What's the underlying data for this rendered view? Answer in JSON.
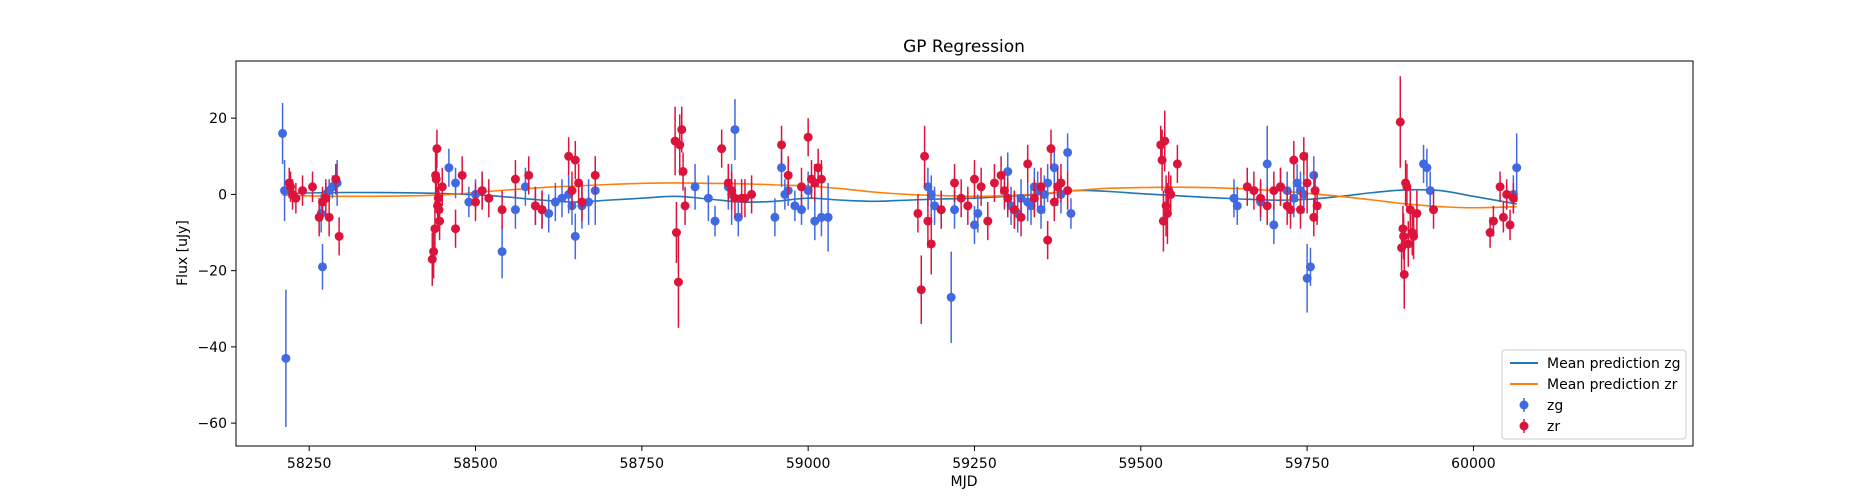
{
  "chart_data": {
    "type": "scatter",
    "title": "GP Regression",
    "xlabel": "MJD",
    "ylabel": "Flux [uJy]",
    "xlim": [
      58140,
      60330
    ],
    "ylim": [
      -66,
      35
    ],
    "xticks": [
      58250,
      58500,
      58750,
      59000,
      59250,
      59500,
      59750,
      60000
    ],
    "yticks": [
      -60,
      -40,
      -20,
      0,
      20
    ],
    "grid": false,
    "legend_position": "bottom-right",
    "colors": {
      "zg_points": "#4169e1",
      "zr_points": "#dc143c",
      "zg_line": "#1f77b4",
      "zr_line": "#ff7f0e"
    },
    "lines": [
      {
        "name": "Mean prediction zg",
        "x": [
          58210,
          58300,
          58440,
          58520,
          58600,
          58650,
          58700,
          58750,
          58800,
          58850,
          58900,
          58950,
          59000,
          59050,
          59100,
          59150,
          59200,
          59250,
          59300,
          59350,
          59400,
          59450,
          59500,
          59550,
          59600,
          59650,
          59700,
          59750,
          59800,
          59850,
          59900,
          59950,
          60000,
          60065
        ],
        "y": [
          0.2,
          0.5,
          0.3,
          -0.3,
          -1.5,
          -2.0,
          -1.5,
          -1.0,
          -0.5,
          -1.2,
          -2.0,
          -1.8,
          -1.0,
          -1.5,
          -1.8,
          -1.5,
          -1.2,
          -1.0,
          -0.5,
          0.0,
          1.0,
          0.8,
          0.2,
          -0.3,
          -0.8,
          -1.2,
          -1.5,
          -1.3,
          -0.5,
          0.5,
          1.2,
          1.0,
          -0.5,
          -2.5
        ]
      },
      {
        "name": "Mean prediction zr",
        "x": [
          58210,
          58300,
          58440,
          58520,
          58600,
          58650,
          58700,
          58750,
          58800,
          58850,
          58900,
          58950,
          59000,
          59050,
          59100,
          59150,
          59200,
          59250,
          59300,
          59350,
          59400,
          59450,
          59500,
          59550,
          59600,
          59650,
          59700,
          59750,
          59800,
          59850,
          59900,
          59950,
          60000,
          60065
        ],
        "y": [
          -0.2,
          -0.5,
          -0.2,
          0.8,
          1.8,
          2.2,
          2.6,
          2.9,
          3.0,
          2.9,
          2.8,
          2.5,
          2.2,
          1.5,
          0.6,
          0.0,
          -0.3,
          -0.5,
          -0.3,
          0.2,
          1.0,
          1.6,
          1.8,
          1.9,
          1.8,
          1.5,
          1.0,
          0.3,
          -0.5,
          -1.5,
          -2.5,
          -3.2,
          -3.5,
          -3.2
        ]
      }
    ],
    "series": [
      {
        "name": "zg",
        "x": [
          58210,
          58213,
          58215,
          58268,
          58270,
          58275,
          58280,
          58285,
          58292,
          58460,
          58470,
          58490,
          58500,
          58510,
          58540,
          58560,
          58575,
          58590,
          58600,
          58610,
          58620,
          58630,
          58640,
          58645,
          58650,
          58660,
          58670,
          58680,
          58830,
          58850,
          58860,
          58880,
          58885,
          58890,
          58895,
          58950,
          58960,
          58965,
          58970,
          58980,
          58990,
          59000,
          59010,
          59020,
          59030,
          59180,
          59185,
          59190,
          59200,
          59215,
          59220,
          59250,
          59255,
          59300,
          59305,
          59310,
          59315,
          59320,
          59330,
          59335,
          59340,
          59345,
          59350,
          59355,
          59360,
          59370,
          59380,
          59390,
          59395,
          59640,
          59645,
          59680,
          59690,
          59700,
          59710,
          59720,
          59730,
          59735,
          59740,
          59745,
          59750,
          59755,
          59760,
          59925,
          59930,
          59935,
          60060,
          60065
        ],
        "y": [
          16,
          1,
          -43,
          -5,
          -19,
          0,
          1,
          2,
          3,
          7,
          3,
          -2,
          0,
          1,
          -15,
          -4,
          2,
          -3,
          -4,
          -5,
          -2,
          -1,
          0,
          -3,
          -11,
          -3,
          -2,
          1,
          2,
          -1,
          -7,
          2,
          0,
          17,
          -6,
          -6,
          7,
          0,
          1,
          -3,
          -4,
          1,
          -7,
          -6,
          -6,
          2,
          0,
          -3,
          -4,
          -27,
          -4,
          -8,
          -5,
          6,
          -3,
          -4,
          -5,
          -1,
          -2,
          -3,
          2,
          1,
          -4,
          0,
          3,
          7,
          0,
          11,
          -5,
          -1,
          -3,
          -2,
          8,
          -8,
          2,
          1,
          -1,
          3,
          1,
          0,
          -22,
          -19,
          5,
          8,
          7,
          1,
          0,
          7
        ],
        "err": [
          8,
          8,
          18,
          5,
          6,
          3,
          3,
          3,
          6,
          5,
          4,
          4,
          4,
          5,
          7,
          5,
          5,
          5,
          5,
          5,
          5,
          5,
          5,
          5,
          6,
          6,
          6,
          9,
          6,
          6,
          4,
          6,
          8,
          8,
          5,
          5,
          5,
          4,
          4,
          4,
          4,
          5,
          5,
          5,
          9,
          5,
          5,
          5,
          5,
          12,
          5,
          5,
          5,
          5,
          5,
          5,
          5,
          5,
          5,
          5,
          5,
          5,
          5,
          5,
          5,
          5,
          5,
          5,
          4,
          5,
          5,
          5,
          10,
          5,
          5,
          5,
          5,
          5,
          5,
          5,
          9,
          5,
          5,
          5,
          5,
          5,
          5,
          9
        ]
      },
      {
        "name": "zr",
        "x": [
          58220,
          58222,
          58225,
          58230,
          58240,
          58255,
          58265,
          58270,
          58275,
          58280,
          58290,
          58295,
          58435,
          58437,
          58439,
          58440,
          58441,
          58442,
          58443,
          58444,
          58445,
          58446,
          58450,
          58470,
          58480,
          58500,
          58510,
          58520,
          58540,
          58560,
          58580,
          58590,
          58600,
          58640,
          58645,
          58650,
          58655,
          58660,
          58680,
          58800,
          58802,
          58805,
          58807,
          58810,
          58812,
          58815,
          58870,
          58880,
          58885,
          58890,
          58900,
          58905,
          58915,
          58960,
          58970,
          58990,
          59000,
          59005,
          59010,
          59015,
          59020,
          59165,
          59170,
          59175,
          59180,
          59185,
          59200,
          59220,
          59230,
          59240,
          59250,
          59260,
          59270,
          59280,
          59290,
          59295,
          59300,
          59310,
          59320,
          59330,
          59340,
          59350,
          59360,
          59365,
          59370,
          59375,
          59380,
          59390,
          59530,
          59532,
          59534,
          59536,
          59538,
          59540,
          59542,
          59545,
          59555,
          59660,
          59670,
          59680,
          59690,
          59700,
          59710,
          59720,
          59725,
          59730,
          59740,
          59745,
          59750,
          59760,
          59762,
          59765,
          59890,
          59892,
          59894,
          59895,
          59896,
          59898,
          59900,
          59902,
          59905,
          59908,
          59910,
          59915,
          59940,
          60025,
          60030,
          60040,
          60045,
          60050,
          60055,
          60060
        ],
        "y": [
          3,
          2,
          0,
          -1,
          1,
          2,
          -6,
          -2,
          -1,
          -6,
          4,
          -11,
          -17,
          -15,
          -9,
          5,
          4,
          12,
          -3,
          -1,
          -4,
          -7,
          2,
          -9,
          5,
          -2,
          1,
          -1,
          -4,
          4,
          5,
          -3,
          -4,
          10,
          1,
          9,
          3,
          -2,
          5,
          14,
          -10,
          -23,
          13,
          17,
          6,
          -3,
          12,
          3,
          1,
          -1,
          -1,
          -1,
          0,
          13,
          5,
          2,
          15,
          4,
          3,
          7,
          4,
          -5,
          -25,
          10,
          -7,
          -13,
          -4,
          3,
          -1,
          -3,
          4,
          2,
          -7,
          3,
          5,
          1,
          -1,
          -4,
          -6,
          8,
          -1,
          2,
          -12,
          12,
          -2,
          2,
          3,
          1,
          13,
          9,
          -7,
          14,
          -3,
          -5,
          1,
          0,
          8,
          2,
          1,
          -1,
          -3,
          1,
          2,
          -3,
          -4,
          9,
          -4,
          10,
          3,
          -6,
          1,
          -3,
          19,
          -14,
          -9,
          -11,
          -21,
          3,
          2,
          -13,
          -4,
          -10,
          -11,
          -5,
          -4,
          -10,
          -7,
          2,
          -6,
          0,
          -8,
          -1
        ],
        "err": [
          4,
          4,
          4,
          4,
          4,
          4,
          5,
          4,
          5,
          5,
          4,
          5,
          7,
          7,
          7,
          7,
          7,
          5,
          5,
          5,
          5,
          5,
          5,
          5,
          5,
          5,
          5,
          5,
          5,
          5,
          5,
          5,
          5,
          5,
          5,
          5,
          5,
          5,
          5,
          9,
          8,
          12,
          8,
          6,
          5,
          5,
          5,
          5,
          5,
          5,
          5,
          5,
          5,
          5,
          5,
          5,
          5,
          5,
          5,
          5,
          5,
          5,
          9,
          8,
          7,
          8,
          5,
          5,
          5,
          5,
          5,
          5,
          5,
          5,
          5,
          5,
          5,
          5,
          5,
          5,
          5,
          5,
          5,
          5,
          5,
          5,
          5,
          5,
          5,
          8,
          8,
          8,
          8,
          8,
          5,
          5,
          5,
          5,
          5,
          5,
          5,
          5,
          5,
          5,
          5,
          5,
          5,
          5,
          8,
          5,
          5,
          5,
          12,
          6,
          6,
          6,
          9,
          6,
          6,
          6,
          6,
          6,
          6,
          6,
          5,
          4,
          4,
          4,
          4,
          4,
          4,
          4
        ]
      }
    ]
  }
}
